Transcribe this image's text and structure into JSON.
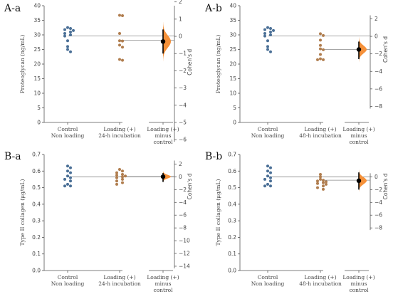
{
  "chart_data": [
    {
      "type": "scatter",
      "panel_label": "A-a",
      "ylabel": "Proteoglycan (ng/mL)",
      "ylim": [
        0,
        40
      ],
      "yticks": [
        0,
        5,
        10,
        15,
        20,
        25,
        30,
        35,
        40
      ],
      "rlabel": "Cohen's d",
      "rticks": [
        2,
        1,
        0,
        -1,
        -2,
        -3,
        -4,
        -5,
        -6
      ],
      "rzero_y": 29.5,
      "rscale": 5.9,
      "categories": [
        "Control\nNon loading",
        "Loading (+)\n24-h incubation",
        "Loading (+)\nminus\ncontrol"
      ],
      "series": [
        {
          "color": "#4a6f96",
          "values": [
            32.5,
            32.2,
            31.8,
            31.5,
            31.0,
            30.5,
            30.0,
            29.6,
            28.0,
            26.0,
            25.0,
            24.2
          ]
        },
        {
          "color": "#b07d4e",
          "values": [
            36.7,
            36.6,
            30.5,
            28.0,
            27.9,
            26.5,
            25.8,
            21.6,
            21.3
          ]
        }
      ],
      "control_mean": 29.6,
      "test_mean": 28.2,
      "effect": {
        "value": -0.3,
        "ci": [
          -1.0,
          0.4
        ],
        "dist_sd": 0.36
      }
    },
    {
      "type": "scatter",
      "panel_label": "A-b",
      "ylabel": "Proteoglycan (ng/mL)",
      "ylim": [
        0,
        40
      ],
      "yticks": [
        0,
        5,
        10,
        15,
        20,
        25,
        30,
        35,
        40
      ],
      "rlabel": "Cohen's d",
      "rticks": [
        2,
        0,
        -2,
        -4,
        -6,
        -8
      ],
      "rzero_y": 29.5,
      "rscale": 3.0,
      "categories": [
        "Control\nNon loading",
        "Loading (+)\n48-h incubation",
        "Loading (+)\nminus\ncontrol"
      ],
      "series": [
        {
          "color": "#4a6f96",
          "values": [
            32.5,
            32.2,
            31.8,
            31.5,
            31.0,
            30.5,
            30.0,
            29.6,
            28.0,
            26.0,
            25.0,
            24.2
          ]
        },
        {
          "color": "#b07d4e",
          "values": [
            30.4,
            29.8,
            28.2,
            26.4,
            25.2,
            24.9,
            23.3,
            21.8,
            21.5,
            21.5
          ]
        }
      ],
      "control_mean": 29.6,
      "test_mean": 25.0,
      "effect": {
        "value": -1.5,
        "ci": [
          -2.6,
          -0.6
        ],
        "dist_sd": 0.45
      }
    },
    {
      "type": "scatter",
      "panel_label": "B-a",
      "ylabel": "Type II collagen (μg/mL)",
      "ylim": [
        0,
        0.7
      ],
      "yticks": [
        0.0,
        0.1,
        0.2,
        0.3,
        0.4,
        0.5,
        0.6,
        0.7
      ],
      "rlabel": "Cohen's d",
      "rticks": [
        2,
        0,
        -2,
        -4,
        -6,
        -8,
        -10,
        -12,
        -14
      ],
      "rzero_y": 0.565,
      "rscale": 0.0385,
      "categories": [
        "Control\nNon loading",
        "Loading (+)\n24-h incubation",
        "Loading (+)\nminus\ncontrol"
      ],
      "series": [
        {
          "color": "#4a6f96",
          "values": [
            0.63,
            0.62,
            0.6,
            0.59,
            0.57,
            0.56,
            0.55,
            0.54,
            0.52,
            0.51,
            0.51
          ]
        },
        {
          "color": "#b07d4e",
          "values": [
            0.61,
            0.6,
            0.59,
            0.58,
            0.575,
            0.57,
            0.565,
            0.56,
            0.55,
            0.54,
            0.53,
            0.52
          ]
        }
      ],
      "control_mean": 0.565,
      "test_mean": 0.567,
      "effect": {
        "value": 0.03,
        "ci": [
          -0.8,
          0.6
        ],
        "dist_sd": 0.28
      }
    },
    {
      "type": "scatter",
      "panel_label": "B-b",
      "ylabel": "Type II collagen (μg/mL)",
      "ylim": [
        0,
        0.7
      ],
      "yticks": [
        0.0,
        0.1,
        0.2,
        0.3,
        0.4,
        0.5,
        0.6,
        0.7
      ],
      "rlabel": "Cohen's d",
      "rticks": [
        0,
        -2,
        -4,
        -6,
        -8
      ],
      "rzero_y": 0.565,
      "rscale": 0.0385,
      "categories": [
        "Control\nNon loading",
        "Loading (+)\n48-h incubation",
        "Loading (+)\nminus\ncontrol"
      ],
      "series": [
        {
          "color": "#4a6f96",
          "values": [
            0.63,
            0.62,
            0.6,
            0.59,
            0.57,
            0.56,
            0.55,
            0.54,
            0.52,
            0.51,
            0.51
          ]
        },
        {
          "color": "#b07d4e",
          "values": [
            0.58,
            0.565,
            0.55,
            0.545,
            0.54,
            0.535,
            0.53,
            0.525,
            0.52,
            0.51,
            0.5,
            0.49
          ]
        }
      ],
      "control_mean": 0.565,
      "test_mean": 0.545,
      "effect": {
        "value": -0.6,
        "ci": [
          -2.0,
          0.7
        ],
        "dist_sd": 0.55
      }
    }
  ],
  "colors": {
    "control": "#4a6f96",
    "test": "#b07d4e",
    "effect_fill": "#f5913a",
    "effect_point": "#000000"
  }
}
